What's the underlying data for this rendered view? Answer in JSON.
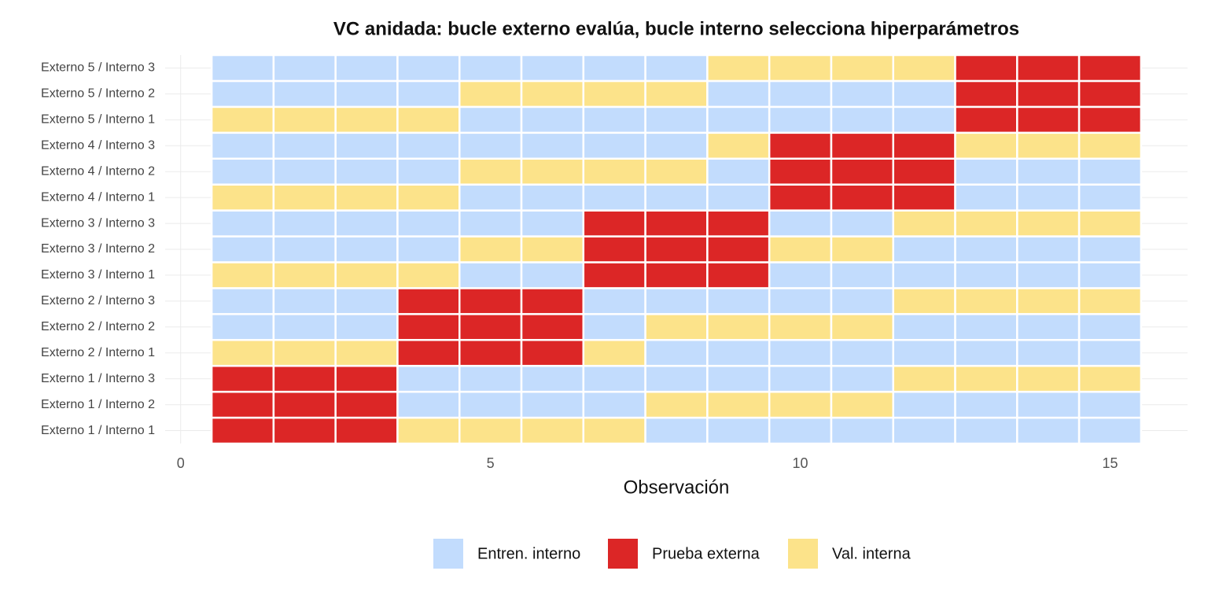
{
  "chart_data": {
    "type": "tile",
    "title": "VC anidada: bucle externo evalúa, bucle interno selecciona hiperparámetros",
    "x_label": "Observación",
    "x": [
      1,
      2,
      3,
      4,
      5,
      6,
      7,
      8,
      9,
      10,
      11,
      12,
      13,
      14,
      15
    ],
    "xlim": [
      -0.25,
      16.25
    ],
    "xticks": [
      0,
      5,
      10,
      15
    ],
    "grid": true,
    "legend": [
      {
        "name": "Entren. interno",
        "color": "#c2dcfd"
      },
      {
        "name": "Prueba externa",
        "color": "#dc2626"
      },
      {
        "name": "Val. interna",
        "color": "#fce38a"
      }
    ],
    "rows": [
      {
        "name": "Externo 1 / Interno 1",
        "values": [
          "Prueba externa",
          "Prueba externa",
          "Prueba externa",
          "Val. interna",
          "Val. interna",
          "Val. interna",
          "Val. interna",
          "Entren. interno",
          "Entren. interno",
          "Entren. interno",
          "Entren. interno",
          "Entren. interno",
          "Entren. interno",
          "Entren. interno",
          "Entren. interno"
        ]
      },
      {
        "name": "Externo 1 / Interno 2",
        "values": [
          "Prueba externa",
          "Prueba externa",
          "Prueba externa",
          "Entren. interno",
          "Entren. interno",
          "Entren. interno",
          "Entren. interno",
          "Val. interna",
          "Val. interna",
          "Val. interna",
          "Val. interna",
          "Entren. interno",
          "Entren. interno",
          "Entren. interno",
          "Entren. interno"
        ]
      },
      {
        "name": "Externo 1 / Interno 3",
        "values": [
          "Prueba externa",
          "Prueba externa",
          "Prueba externa",
          "Entren. interno",
          "Entren. interno",
          "Entren. interno",
          "Entren. interno",
          "Entren. interno",
          "Entren. interno",
          "Entren. interno",
          "Entren. interno",
          "Val. interna",
          "Val. interna",
          "Val. interna",
          "Val. interna"
        ]
      },
      {
        "name": "Externo 2 / Interno 1",
        "values": [
          "Val. interna",
          "Val. interna",
          "Val. interna",
          "Prueba externa",
          "Prueba externa",
          "Prueba externa",
          "Val. interna",
          "Entren. interno",
          "Entren. interno",
          "Entren. interno",
          "Entren. interno",
          "Entren. interno",
          "Entren. interno",
          "Entren. interno",
          "Entren. interno"
        ]
      },
      {
        "name": "Externo 2 / Interno 2",
        "values": [
          "Entren. interno",
          "Entren. interno",
          "Entren. interno",
          "Prueba externa",
          "Prueba externa",
          "Prueba externa",
          "Entren. interno",
          "Val. interna",
          "Val. interna",
          "Val. interna",
          "Val. interna",
          "Entren. interno",
          "Entren. interno",
          "Entren. interno",
          "Entren. interno"
        ]
      },
      {
        "name": "Externo 2 / Interno 3",
        "values": [
          "Entren. interno",
          "Entren. interno",
          "Entren. interno",
          "Prueba externa",
          "Prueba externa",
          "Prueba externa",
          "Entren. interno",
          "Entren. interno",
          "Entren. interno",
          "Entren. interno",
          "Entren. interno",
          "Val. interna",
          "Val. interna",
          "Val. interna",
          "Val. interna"
        ]
      },
      {
        "name": "Externo 3 / Interno 1",
        "values": [
          "Val. interna",
          "Val. interna",
          "Val. interna",
          "Val. interna",
          "Entren. interno",
          "Entren. interno",
          "Prueba externa",
          "Prueba externa",
          "Prueba externa",
          "Entren. interno",
          "Entren. interno",
          "Entren. interno",
          "Entren. interno",
          "Entren. interno",
          "Entren. interno"
        ]
      },
      {
        "name": "Externo 3 / Interno 2",
        "values": [
          "Entren. interno",
          "Entren. interno",
          "Entren. interno",
          "Entren. interno",
          "Val. interna",
          "Val. interna",
          "Prueba externa",
          "Prueba externa",
          "Prueba externa",
          "Val. interna",
          "Val. interna",
          "Entren. interno",
          "Entren. interno",
          "Entren. interno",
          "Entren. interno"
        ]
      },
      {
        "name": "Externo 3 / Interno 3",
        "values": [
          "Entren. interno",
          "Entren. interno",
          "Entren. interno",
          "Entren. interno",
          "Entren. interno",
          "Entren. interno",
          "Prueba externa",
          "Prueba externa",
          "Prueba externa",
          "Entren. interno",
          "Entren. interno",
          "Val. interna",
          "Val. interna",
          "Val. interna",
          "Val. interna"
        ]
      },
      {
        "name": "Externo 4 / Interno 1",
        "values": [
          "Val. interna",
          "Val. interna",
          "Val. interna",
          "Val. interna",
          "Entren. interno",
          "Entren. interno",
          "Entren. interno",
          "Entren. interno",
          "Entren. interno",
          "Prueba externa",
          "Prueba externa",
          "Prueba externa",
          "Entren. interno",
          "Entren. interno",
          "Entren. interno"
        ]
      },
      {
        "name": "Externo 4 / Interno 2",
        "values": [
          "Entren. interno",
          "Entren. interno",
          "Entren. interno",
          "Entren. interno",
          "Val. interna",
          "Val. interna",
          "Val. interna",
          "Val. interna",
          "Entren. interno",
          "Prueba externa",
          "Prueba externa",
          "Prueba externa",
          "Entren. interno",
          "Entren. interno",
          "Entren. interno"
        ]
      },
      {
        "name": "Externo 4 / Interno 3",
        "values": [
          "Entren. interno",
          "Entren. interno",
          "Entren. interno",
          "Entren. interno",
          "Entren. interno",
          "Entren. interno",
          "Entren. interno",
          "Entren. interno",
          "Val. interna",
          "Prueba externa",
          "Prueba externa",
          "Prueba externa",
          "Val. interna",
          "Val. interna",
          "Val. interna"
        ]
      },
      {
        "name": "Externo 5 / Interno 1",
        "values": [
          "Val. interna",
          "Val. interna",
          "Val. interna",
          "Val. interna",
          "Entren. interno",
          "Entren. interno",
          "Entren. interno",
          "Entren. interno",
          "Entren. interno",
          "Entren. interno",
          "Entren. interno",
          "Entren. interno",
          "Prueba externa",
          "Prueba externa",
          "Prueba externa"
        ]
      },
      {
        "name": "Externo 5 / Interno 2",
        "values": [
          "Entren. interno",
          "Entren. interno",
          "Entren. interno",
          "Entren. interno",
          "Val. interna",
          "Val. interna",
          "Val. interna",
          "Val. interna",
          "Entren. interno",
          "Entren. interno",
          "Entren. interno",
          "Entren. interno",
          "Prueba externa",
          "Prueba externa",
          "Prueba externa"
        ]
      },
      {
        "name": "Externo 5 / Interno 3",
        "values": [
          "Entren. interno",
          "Entren. interno",
          "Entren. interno",
          "Entren. interno",
          "Entren. interno",
          "Entren. interno",
          "Entren. interno",
          "Entren. interno",
          "Val. interna",
          "Val. interna",
          "Val. interna",
          "Val. interna",
          "Prueba externa",
          "Prueba externa",
          "Prueba externa"
        ]
      }
    ]
  }
}
